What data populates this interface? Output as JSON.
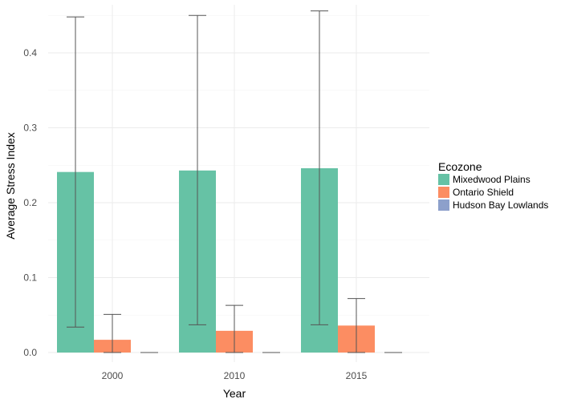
{
  "chart_data": {
    "type": "bar",
    "title": "",
    "xlabel": "Year",
    "ylabel": "Average Stress Index",
    "categories": [
      "2000",
      "2010",
      "2015"
    ],
    "ylim": [
      0,
      0.46
    ],
    "yticks": [
      "0.0",
      "0.1",
      "0.2",
      "0.3",
      "0.4"
    ],
    "grid": true,
    "legend": {
      "title": "Ecozone",
      "position": "right"
    },
    "series": [
      {
        "name": "Mixedwood Plains",
        "color": "#66c2a5",
        "values": [
          0.241,
          0.243,
          0.246
        ],
        "error_low": [
          0.034,
          0.037,
          0.037
        ],
        "error_high": [
          0.448,
          0.45,
          0.456
        ]
      },
      {
        "name": "Ontario Shield",
        "color": "#fc8d62",
        "values": [
          0.017,
          0.029,
          0.036
        ],
        "error_low": [
          0.0,
          0.0,
          0.0
        ],
        "error_high": [
          0.051,
          0.063,
          0.072
        ]
      },
      {
        "name": "Hudson Bay Lowlands",
        "color": "#8da0cb",
        "values": [
          0.0,
          0.0,
          0.0
        ],
        "error_low": [
          0.0,
          0.0,
          0.0
        ],
        "error_high": [
          0.0,
          0.0,
          0.0
        ]
      }
    ]
  }
}
